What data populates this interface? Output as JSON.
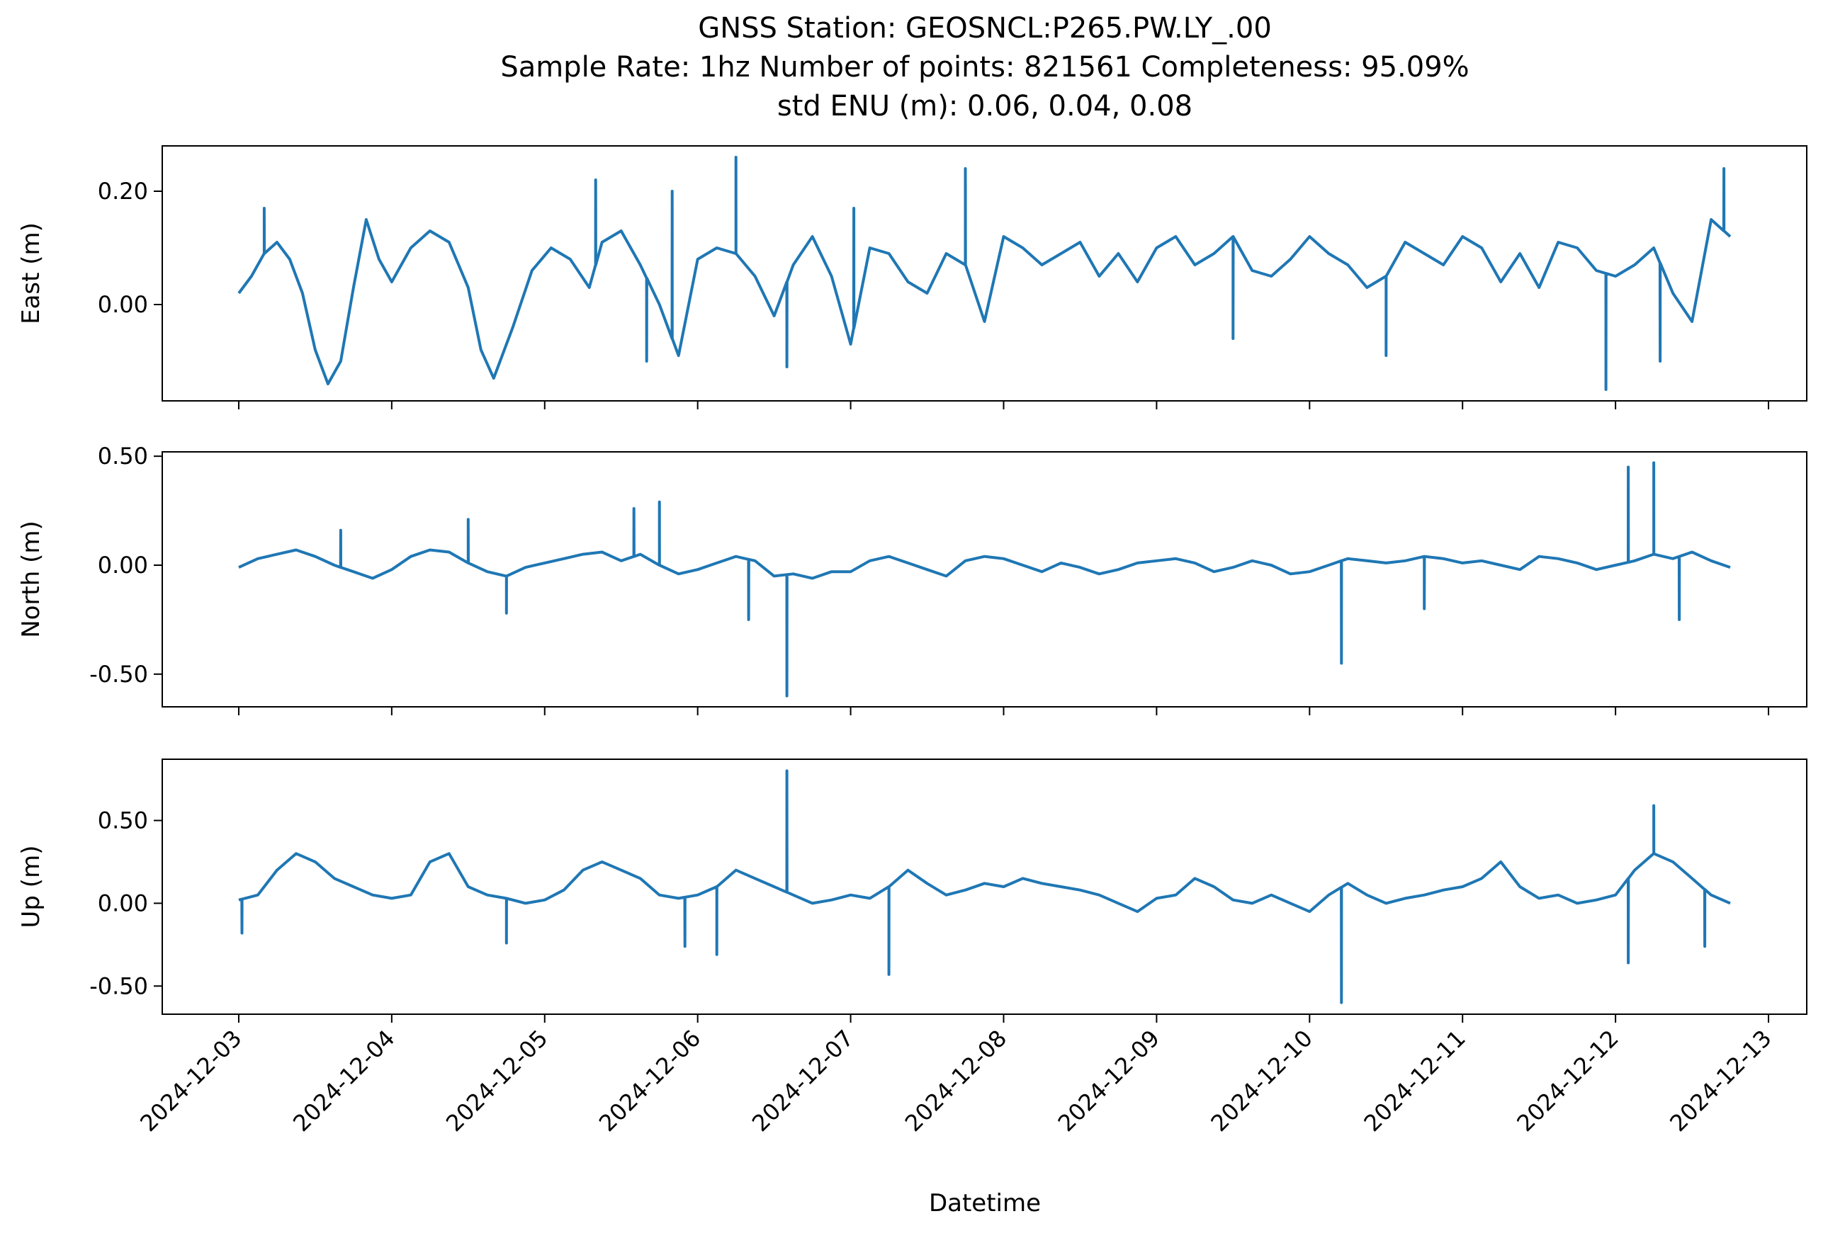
{
  "figure": {
    "title_lines": [
      "GNSS Station: GEOSNCL:P265.PW.LY_.00",
      "Sample Rate: 1hz   Number of points: 821561    Completeness:  95.09%",
      "std ENU (m):  0.06, 0.04, 0.08"
    ]
  },
  "colors": {
    "line": "#1f77b4",
    "axes": "#000000",
    "background": "#ffffff"
  },
  "chart_data": {
    "type": "line",
    "xlabel": "Datetime",
    "x_ticks": [
      "2024-12-03",
      "2024-12-04",
      "2024-12-05",
      "2024-12-06",
      "2024-12-07",
      "2024-12-08",
      "2024-12-09",
      "2024-12-10",
      "2024-12-11",
      "2024-12-12",
      "2024-12-13"
    ],
    "xlim": [
      "2024-12-02T12:00",
      "2024-12-13T06:00"
    ],
    "shared_x": true,
    "grid": false,
    "panels": [
      {
        "name": "east",
        "ylabel": "East (m)",
        "ylim": [
          -0.17,
          0.28
        ],
        "y_ticks": [
          0.0,
          0.2
        ],
        "y_tick_labels": [
          "0.00",
          "0.20"
        ],
        "x": [
          "2024-12-03T00:00",
          "2024-12-03T02:00",
          "2024-12-03T04:00",
          "2024-12-03T06:00",
          "2024-12-03T08:00",
          "2024-12-03T10:00",
          "2024-12-03T12:00",
          "2024-12-03T14:00",
          "2024-12-03T16:00",
          "2024-12-03T18:00",
          "2024-12-03T20:00",
          "2024-12-03T22:00",
          "2024-12-04T00:00",
          "2024-12-04T03:00",
          "2024-12-04T06:00",
          "2024-12-04T09:00",
          "2024-12-04T12:00",
          "2024-12-04T14:00",
          "2024-12-04T16:00",
          "2024-12-04T19:00",
          "2024-12-04T22:00",
          "2024-12-05T01:00",
          "2024-12-05T04:00",
          "2024-12-05T07:00",
          "2024-12-05T09:00",
          "2024-12-05T12:00",
          "2024-12-05T15:00",
          "2024-12-05T18:00",
          "2024-12-05T21:00",
          "2024-12-06T00:00",
          "2024-12-06T03:00",
          "2024-12-06T06:00",
          "2024-12-06T09:00",
          "2024-12-06T12:00",
          "2024-12-06T15:00",
          "2024-12-06T18:00",
          "2024-12-06T21:00",
          "2024-12-07T00:00",
          "2024-12-07T03:00",
          "2024-12-07T06:00",
          "2024-12-07T09:00",
          "2024-12-07T12:00",
          "2024-12-07T15:00",
          "2024-12-07T18:00",
          "2024-12-07T21:00",
          "2024-12-08T00:00",
          "2024-12-08T03:00",
          "2024-12-08T06:00",
          "2024-12-08T09:00",
          "2024-12-08T12:00",
          "2024-12-08T15:00",
          "2024-12-08T18:00",
          "2024-12-08T21:00",
          "2024-12-09T00:00",
          "2024-12-09T03:00",
          "2024-12-09T06:00",
          "2024-12-09T09:00",
          "2024-12-09T12:00",
          "2024-12-09T15:00",
          "2024-12-09T18:00",
          "2024-12-09T21:00",
          "2024-12-10T00:00",
          "2024-12-10T03:00",
          "2024-12-10T06:00",
          "2024-12-10T09:00",
          "2024-12-10T12:00",
          "2024-12-10T15:00",
          "2024-12-10T18:00",
          "2024-12-10T21:00",
          "2024-12-11T00:00",
          "2024-12-11T03:00",
          "2024-12-11T06:00",
          "2024-12-11T09:00",
          "2024-12-11T12:00",
          "2024-12-11T15:00",
          "2024-12-11T18:00",
          "2024-12-11T21:00",
          "2024-12-12T00:00",
          "2024-12-12T03:00",
          "2024-12-12T06:00",
          "2024-12-12T09:00",
          "2024-12-12T12:00",
          "2024-12-12T15:00",
          "2024-12-12T18:00"
        ],
        "y": [
          0.02,
          0.05,
          0.09,
          0.11,
          0.08,
          0.02,
          -0.08,
          -0.14,
          -0.1,
          0.03,
          0.15,
          0.08,
          0.04,
          0.1,
          0.13,
          0.11,
          0.03,
          -0.08,
          -0.13,
          -0.04,
          0.06,
          0.1,
          0.08,
          0.03,
          0.11,
          0.13,
          0.07,
          0.0,
          -0.09,
          0.08,
          0.1,
          0.09,
          0.05,
          -0.02,
          0.07,
          0.12,
          0.05,
          -0.07,
          0.1,
          0.09,
          0.04,
          0.02,
          0.09,
          0.07,
          -0.03,
          0.12,
          0.1,
          0.07,
          0.09,
          0.11,
          0.05,
          0.09,
          0.04,
          0.1,
          0.12,
          0.07,
          0.09,
          0.12,
          0.06,
          0.05,
          0.08,
          0.12,
          0.09,
          0.07,
          0.03,
          0.05,
          0.11,
          0.09,
          0.07,
          0.12,
          0.1,
          0.04,
          0.09,
          0.03,
          0.11,
          0.1,
          0.06,
          0.05,
          0.07,
          0.1,
          0.02,
          -0.03,
          0.15,
          0.12
        ],
        "spikes": [
          {
            "x": "2024-12-03T04:00",
            "y": 0.17
          },
          {
            "x": "2024-12-05T08:00",
            "y": 0.22
          },
          {
            "x": "2024-12-05T16:00",
            "y": -0.1
          },
          {
            "x": "2024-12-05T20:00",
            "y": 0.2
          },
          {
            "x": "2024-12-06T06:00",
            "y": 0.26
          },
          {
            "x": "2024-12-06T14:00",
            "y": -0.11
          },
          {
            "x": "2024-12-07T00:30",
            "y": 0.17
          },
          {
            "x": "2024-12-07T18:00",
            "y": 0.24
          },
          {
            "x": "2024-12-09T12:00",
            "y": -0.06
          },
          {
            "x": "2024-12-10T12:00",
            "y": -0.09
          },
          {
            "x": "2024-12-11T22:30",
            "y": -0.15
          },
          {
            "x": "2024-12-12T07:00",
            "y": -0.1
          },
          {
            "x": "2024-12-12T17:00",
            "y": 0.24
          }
        ]
      },
      {
        "name": "north",
        "ylabel": "North (m)",
        "ylim": [
          -0.65,
          0.52
        ],
        "y_ticks": [
          -0.5,
          0.0,
          0.5
        ],
        "y_tick_labels": [
          "-0.50",
          "0.00",
          "0.50"
        ],
        "x": [
          "2024-12-03T00:00",
          "2024-12-03T03:00",
          "2024-12-03T06:00",
          "2024-12-03T09:00",
          "2024-12-03T12:00",
          "2024-12-03T15:00",
          "2024-12-03T18:00",
          "2024-12-03T21:00",
          "2024-12-04T00:00",
          "2024-12-04T03:00",
          "2024-12-04T06:00",
          "2024-12-04T09:00",
          "2024-12-04T12:00",
          "2024-12-04T15:00",
          "2024-12-04T18:00",
          "2024-12-04T21:00",
          "2024-12-05T00:00",
          "2024-12-05T03:00",
          "2024-12-05T06:00",
          "2024-12-05T09:00",
          "2024-12-05T12:00",
          "2024-12-05T15:00",
          "2024-12-05T18:00",
          "2024-12-05T21:00",
          "2024-12-06T00:00",
          "2024-12-06T03:00",
          "2024-12-06T06:00",
          "2024-12-06T09:00",
          "2024-12-06T12:00",
          "2024-12-06T15:00",
          "2024-12-06T18:00",
          "2024-12-06T21:00",
          "2024-12-07T00:00",
          "2024-12-07T03:00",
          "2024-12-07T06:00",
          "2024-12-07T09:00",
          "2024-12-07T12:00",
          "2024-12-07T15:00",
          "2024-12-07T18:00",
          "2024-12-07T21:00",
          "2024-12-08T00:00",
          "2024-12-08T03:00",
          "2024-12-08T06:00",
          "2024-12-08T09:00",
          "2024-12-08T12:00",
          "2024-12-08T15:00",
          "2024-12-08T18:00",
          "2024-12-08T21:00",
          "2024-12-09T00:00",
          "2024-12-09T03:00",
          "2024-12-09T06:00",
          "2024-12-09T09:00",
          "2024-12-09T12:00",
          "2024-12-09T15:00",
          "2024-12-09T18:00",
          "2024-12-09T21:00",
          "2024-12-10T00:00",
          "2024-12-10T03:00",
          "2024-12-10T06:00",
          "2024-12-10T09:00",
          "2024-12-10T12:00",
          "2024-12-10T15:00",
          "2024-12-10T18:00",
          "2024-12-10T21:00",
          "2024-12-11T00:00",
          "2024-12-11T03:00",
          "2024-12-11T06:00",
          "2024-12-11T09:00",
          "2024-12-11T12:00",
          "2024-12-11T15:00",
          "2024-12-11T18:00",
          "2024-12-11T21:00",
          "2024-12-12T00:00",
          "2024-12-12T03:00",
          "2024-12-12T06:00",
          "2024-12-12T09:00",
          "2024-12-12T12:00",
          "2024-12-12T15:00",
          "2024-12-12T18:00"
        ],
        "y": [
          -0.01,
          0.03,
          0.05,
          0.07,
          0.04,
          0.0,
          -0.03,
          -0.06,
          -0.02,
          0.04,
          0.07,
          0.06,
          0.01,
          -0.03,
          -0.05,
          -0.01,
          0.01,
          0.03,
          0.05,
          0.06,
          0.02,
          0.05,
          0.0,
          -0.04,
          -0.02,
          0.01,
          0.04,
          0.02,
          -0.05,
          -0.04,
          -0.06,
          -0.03,
          -0.03,
          0.02,
          0.04,
          0.01,
          -0.02,
          -0.05,
          0.02,
          0.04,
          0.03,
          0.0,
          -0.03,
          0.01,
          -0.01,
          -0.04,
          -0.02,
          0.01,
          0.02,
          0.03,
          0.01,
          -0.03,
          -0.01,
          0.02,
          0.0,
          -0.04,
          -0.03,
          0.0,
          0.03,
          0.02,
          0.01,
          0.02,
          0.04,
          0.03,
          0.01,
          0.02,
          0.0,
          -0.02,
          0.04,
          0.03,
          0.01,
          -0.02,
          0.0,
          0.02,
          0.05,
          0.03,
          0.06,
          0.02,
          -0.01
        ],
        "spikes": [
          {
            "x": "2024-12-03T16:00",
            "y": 0.16
          },
          {
            "x": "2024-12-04T12:00",
            "y": 0.21
          },
          {
            "x": "2024-12-04T18:00",
            "y": -0.22
          },
          {
            "x": "2024-12-05T14:00",
            "y": 0.26
          },
          {
            "x": "2024-12-05T18:00",
            "y": 0.29
          },
          {
            "x": "2024-12-06T08:00",
            "y": -0.25
          },
          {
            "x": "2024-12-06T14:00",
            "y": -0.6
          },
          {
            "x": "2024-12-10T05:00",
            "y": -0.45
          },
          {
            "x": "2024-12-10T18:00",
            "y": -0.2
          },
          {
            "x": "2024-12-12T02:00",
            "y": 0.45
          },
          {
            "x": "2024-12-12T06:00",
            "y": 0.47
          },
          {
            "x": "2024-12-12T10:00",
            "y": -0.25
          }
        ]
      },
      {
        "name": "up",
        "ylabel": "Up (m)",
        "ylim": [
          -0.67,
          0.87
        ],
        "y_ticks": [
          -0.5,
          0.0,
          0.5
        ],
        "y_tick_labels": [
          "-0.50",
          "0.00",
          "0.50"
        ],
        "x": [
          "2024-12-03T00:00",
          "2024-12-03T03:00",
          "2024-12-03T06:00",
          "2024-12-03T09:00",
          "2024-12-03T12:00",
          "2024-12-03T15:00",
          "2024-12-03T18:00",
          "2024-12-03T21:00",
          "2024-12-04T00:00",
          "2024-12-04T03:00",
          "2024-12-04T06:00",
          "2024-12-04T09:00",
          "2024-12-04T12:00",
          "2024-12-04T15:00",
          "2024-12-04T18:00",
          "2024-12-04T21:00",
          "2024-12-05T00:00",
          "2024-12-05T03:00",
          "2024-12-05T06:00",
          "2024-12-05T09:00",
          "2024-12-05T12:00",
          "2024-12-05T15:00",
          "2024-12-05T18:00",
          "2024-12-05T21:00",
          "2024-12-06T00:00",
          "2024-12-06T03:00",
          "2024-12-06T06:00",
          "2024-12-06T09:00",
          "2024-12-06T12:00",
          "2024-12-06T15:00",
          "2024-12-06T18:00",
          "2024-12-06T21:00",
          "2024-12-07T00:00",
          "2024-12-07T03:00",
          "2024-12-07T06:00",
          "2024-12-07T09:00",
          "2024-12-07T12:00",
          "2024-12-07T15:00",
          "2024-12-07T18:00",
          "2024-12-07T21:00",
          "2024-12-08T00:00",
          "2024-12-08T03:00",
          "2024-12-08T06:00",
          "2024-12-08T09:00",
          "2024-12-08T12:00",
          "2024-12-08T15:00",
          "2024-12-08T18:00",
          "2024-12-08T21:00",
          "2024-12-09T00:00",
          "2024-12-09T03:00",
          "2024-12-09T06:00",
          "2024-12-09T09:00",
          "2024-12-09T12:00",
          "2024-12-09T15:00",
          "2024-12-09T18:00",
          "2024-12-09T21:00",
          "2024-12-10T00:00",
          "2024-12-10T03:00",
          "2024-12-10T06:00",
          "2024-12-10T09:00",
          "2024-12-10T12:00",
          "2024-12-10T15:00",
          "2024-12-10T18:00",
          "2024-12-10T21:00",
          "2024-12-11T00:00",
          "2024-12-11T03:00",
          "2024-12-11T06:00",
          "2024-12-11T09:00",
          "2024-12-11T12:00",
          "2024-12-11T15:00",
          "2024-12-11T18:00",
          "2024-12-11T21:00",
          "2024-12-12T00:00",
          "2024-12-12T03:00",
          "2024-12-12T06:00",
          "2024-12-12T09:00",
          "2024-12-12T12:00",
          "2024-12-12T15:00",
          "2024-12-12T18:00"
        ],
        "y": [
          0.02,
          0.05,
          0.2,
          0.3,
          0.25,
          0.15,
          0.1,
          0.05,
          0.03,
          0.05,
          0.25,
          0.3,
          0.1,
          0.05,
          0.03,
          0.0,
          0.02,
          0.08,
          0.2,
          0.25,
          0.2,
          0.15,
          0.05,
          0.03,
          0.05,
          0.1,
          0.2,
          0.15,
          0.1,
          0.05,
          0.0,
          0.02,
          0.05,
          0.03,
          0.1,
          0.2,
          0.12,
          0.05,
          0.08,
          0.12,
          0.1,
          0.15,
          0.12,
          0.1,
          0.08,
          0.05,
          0.0,
          -0.05,
          0.03,
          0.05,
          0.15,
          0.1,
          0.02,
          0.0,
          0.05,
          0.0,
          -0.05,
          0.05,
          0.12,
          0.05,
          0.0,
          0.03,
          0.05,
          0.08,
          0.1,
          0.15,
          0.25,
          0.1,
          0.03,
          0.05,
          0.0,
          0.02,
          0.05,
          0.2,
          0.3,
          0.25,
          0.15,
          0.05,
          0.0
        ],
        "spikes": [
          {
            "x": "2024-12-03T00:30",
            "y": -0.18
          },
          {
            "x": "2024-12-04T18:00",
            "y": -0.24
          },
          {
            "x": "2024-12-05T22:00",
            "y": -0.26
          },
          {
            "x": "2024-12-06T03:00",
            "y": -0.31
          },
          {
            "x": "2024-12-06T14:00",
            "y": 0.8
          },
          {
            "x": "2024-12-07T06:00",
            "y": -0.43
          },
          {
            "x": "2024-12-10T05:00",
            "y": -0.6
          },
          {
            "x": "2024-12-12T02:00",
            "y": -0.36
          },
          {
            "x": "2024-12-12T06:00",
            "y": 0.59
          },
          {
            "x": "2024-12-12T14:00",
            "y": -0.26
          }
        ]
      }
    ]
  }
}
